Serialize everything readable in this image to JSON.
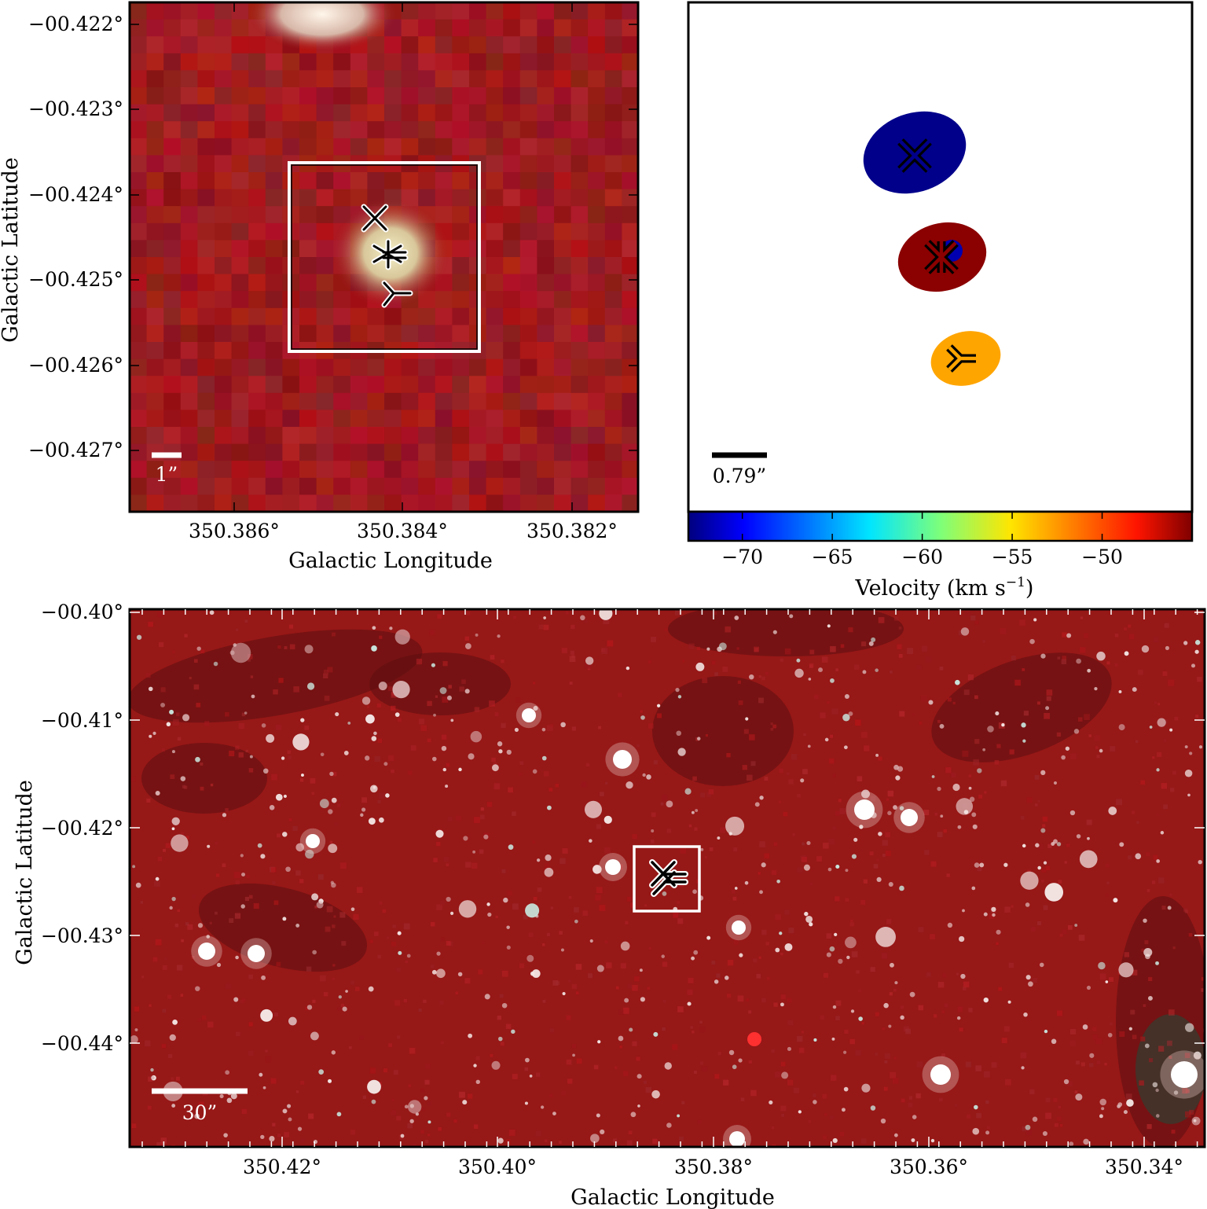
{
  "panels": {
    "top_left": {
      "xlabel": "Galactic Longitude",
      "ylabel": "Galactic Latitude",
      "x_ticks": [
        "350.386°",
        "350.384°",
        "350.382°"
      ],
      "y_ticks": [
        "−00.422°",
        "−00.423°",
        "−00.424°",
        "−00.425°",
        "−00.426°",
        "−00.427°"
      ],
      "scale_bar": "1”",
      "markers": [
        "x",
        "asterisk",
        "tri_left"
      ]
    },
    "top_right": {
      "scale_bar": "0.79”",
      "colorbar": {
        "label": "Velocity (km s",
        "label_sup": "−1",
        "label_close": ")",
        "ticks": [
          "−70",
          "−65",
          "−60",
          "−55",
          "−50"
        ],
        "range": [
          -73,
          -45
        ]
      },
      "components": [
        {
          "marker": "x",
          "velocity": -73,
          "color": "#00008b"
        },
        {
          "marker": "x",
          "velocity": -45,
          "color": "#8b0000"
        },
        {
          "marker": "asterisk",
          "velocity": -72,
          "color": "#0000b0"
        },
        {
          "marker": "tri_left",
          "velocity": -53,
          "color": "#ffa500"
        }
      ]
    },
    "bottom": {
      "xlabel": "Galactic Longitude",
      "ylabel": "Galactic Latitude",
      "x_ticks": [
        "350.42°",
        "350.40°",
        "350.38°",
        "350.36°",
        "350.34°"
      ],
      "y_ticks": [
        "−00.40°",
        "−00.41°",
        "−00.42°",
        "−00.43°",
        "−00.44°"
      ],
      "scale_bar": "30”"
    }
  },
  "colors": {
    "image_background": "#9a1a1a",
    "marker_fill_white": "#ffffff",
    "marker_stroke": "#000000"
  }
}
